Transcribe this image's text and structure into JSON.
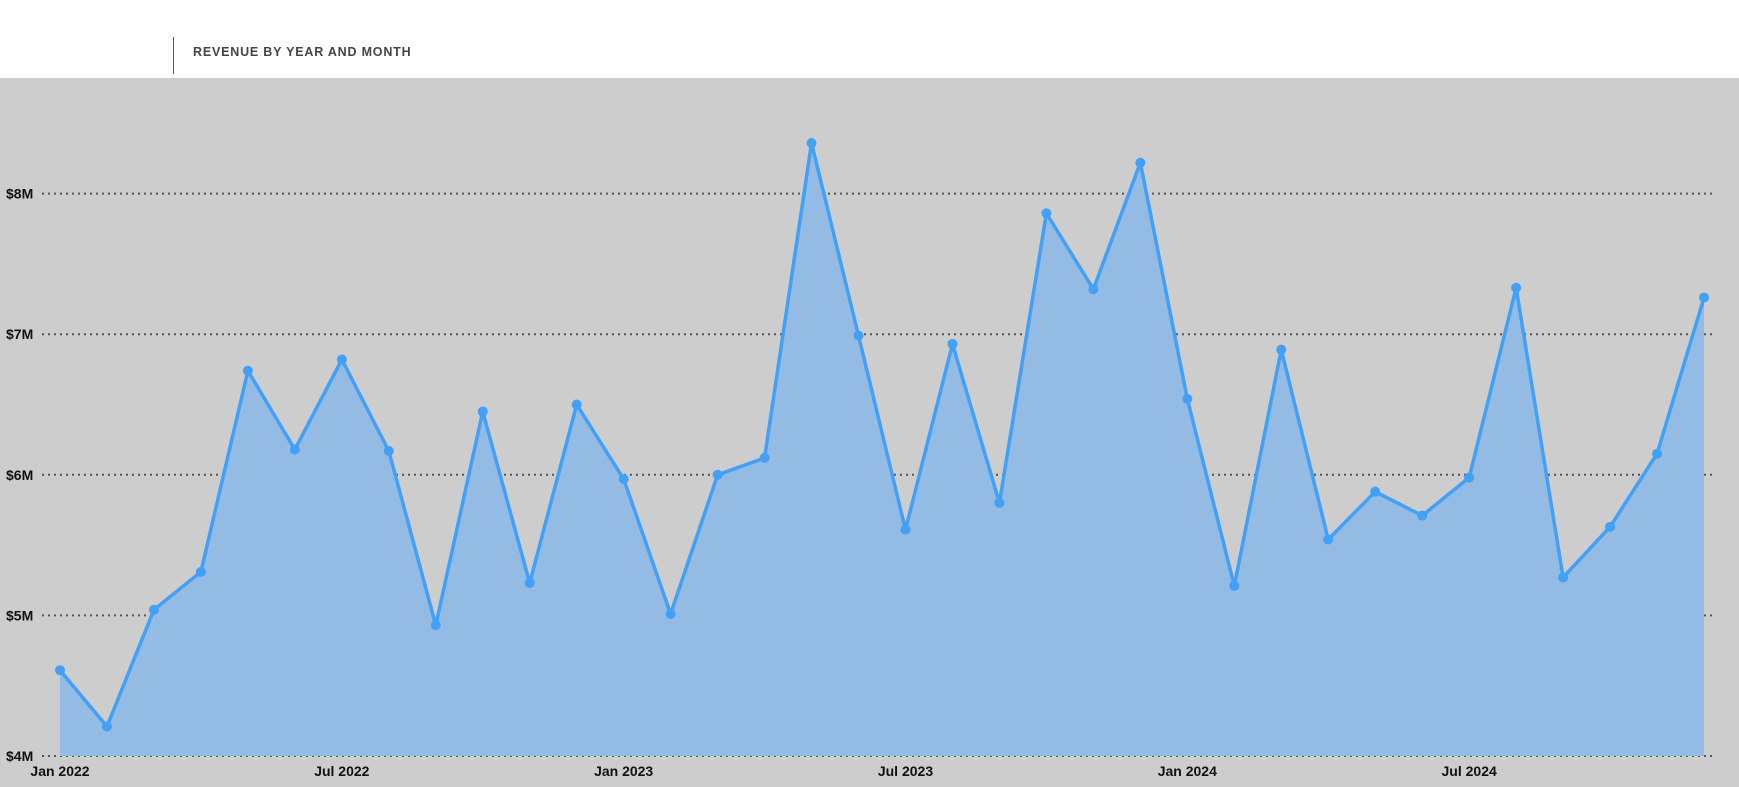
{
  "header": {
    "title": "REVENUE BY YEAR AND MONTH"
  },
  "chart_data": {
    "type": "area",
    "title": "REVENUE BY YEAR AND MONTH",
    "xlabel": "",
    "ylabel": "",
    "ylim": [
      4000000,
      8000000
    ],
    "y_ticks": [
      4000000,
      5000000,
      6000000,
      7000000,
      8000000
    ],
    "y_tick_labels": [
      "$4M",
      "$5M",
      "$6M",
      "$7M",
      "$8M"
    ],
    "x_tick_labels": [
      "Jan 2022",
      "Jul 2022",
      "Jan 2023",
      "Jul 2023",
      "Jan 2024",
      "Jul 2024"
    ],
    "x_tick_positions": [
      "2022-01",
      "2022-07",
      "2023-01",
      "2023-07",
      "2024-01",
      "2024-07"
    ],
    "grid": "horizontal dotted",
    "line_color": "#42a0f7",
    "fill_color": "#93bbe3",
    "series": [
      {
        "x": [
          "2022-01",
          "2022-02",
          "2022-03",
          "2022-04",
          "2022-05",
          "2022-06",
          "2022-07",
          "2022-08",
          "2022-09",
          "2022-10",
          "2022-11",
          "2022-12",
          "2023-01",
          "2023-02",
          "2023-03",
          "2023-04",
          "2023-05",
          "2023-06",
          "2023-07",
          "2023-08",
          "2023-09",
          "2023-10",
          "2023-11",
          "2023-12",
          "2024-01",
          "2024-02",
          "2024-03",
          "2024-04",
          "2024-05",
          "2024-06",
          "2024-07",
          "2024-08",
          "2024-09",
          "2024-10",
          "2024-11",
          "2024-12"
        ],
        "values": [
          4610000,
          4210000,
          5040000,
          5310000,
          6740000,
          6180000,
          6820000,
          6170000,
          4930000,
          6450000,
          5230000,
          6500000,
          5970000,
          5010000,
          6000000,
          6120000,
          8360000,
          6990000,
          5610000,
          6930000,
          5800000,
          7860000,
          7320000,
          8220000,
          6540000,
          5210000,
          6890000,
          5540000,
          5880000,
          5710000,
          5980000,
          7330000,
          5270000,
          5630000,
          6150000,
          7260000
        ]
      }
    ]
  }
}
